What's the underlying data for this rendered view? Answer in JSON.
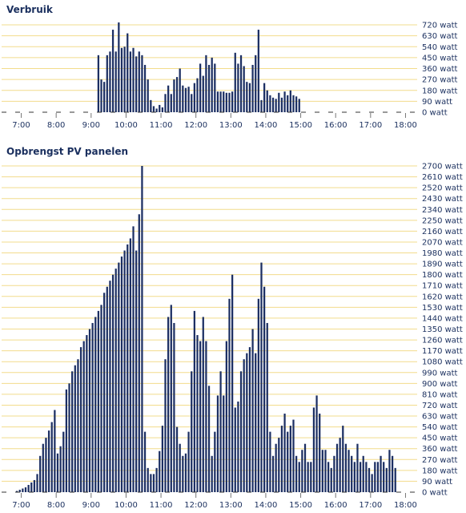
{
  "colors": {
    "bar": "#1c2f63",
    "grid": "#f2dc8c",
    "axis": "#777777",
    "text": "#1a2f5e"
  },
  "chart_data": [
    {
      "type": "bar",
      "title": "Verbruik",
      "xlabel": "",
      "ylabel": "",
      "y_unit": "watt",
      "ylim": [
        0,
        720
      ],
      "y_ticks": [
        "720 watt",
        "630 watt",
        "540 watt",
        "450 watt",
        "360 watt",
        "270 watt",
        "180 watt",
        "90 watt",
        "0 watt"
      ],
      "x_ticks": [
        "7:00",
        "8:00",
        "9:00",
        "10:00",
        "11:00",
        "12:00",
        "13:00",
        "14:00",
        "15:00",
        "16:00",
        "17:00",
        "18:00"
      ],
      "x_range": [
        "6:40",
        "18:20"
      ],
      "interval_minutes": 5,
      "grid": true,
      "values": [
        0,
        0,
        0,
        0,
        0,
        0,
        0,
        0,
        0,
        0,
        0,
        0,
        0,
        0,
        0,
        0,
        0,
        0,
        0,
        0,
        0,
        0,
        0,
        0,
        0,
        0,
        0,
        0,
        0,
        0,
        470,
        270,
        250,
        470,
        500,
        680,
        500,
        740,
        530,
        540,
        650,
        500,
        530,
        460,
        500,
        470,
        390,
        270,
        100,
        50,
        30,
        60,
        40,
        150,
        220,
        150,
        270,
        290,
        360,
        220,
        200,
        210,
        150,
        240,
        280,
        400,
        300,
        470,
        390,
        450,
        400,
        170,
        170,
        170,
        160,
        160,
        170,
        490,
        400,
        470,
        380,
        250,
        240,
        390,
        470,
        680,
        100,
        240,
        180,
        140,
        120,
        110,
        160,
        120,
        170,
        140,
        180,
        140,
        130,
        110,
        0,
        0,
        0,
        0,
        0,
        0,
        0,
        0,
        0,
        0,
        0,
        0,
        0,
        0,
        0,
        0,
        0,
        0,
        0,
        0,
        0,
        0,
        0,
        0,
        0,
        0,
        0,
        0,
        0,
        0
      ]
    },
    {
      "type": "bar",
      "title": "Opbrengst PV panelen",
      "xlabel": "",
      "ylabel": "",
      "y_unit": "watt",
      "ylim": [
        0,
        2700
      ],
      "y_ticks": [
        "2700 watt",
        "2610 watt",
        "2520 watt",
        "2430 watt",
        "2340 watt",
        "2250 watt",
        "2160 watt",
        "2070 watt",
        "1980 watt",
        "1890 watt",
        "1800 watt",
        "1710 watt",
        "1620 watt",
        "1530 watt",
        "1440 watt",
        "1350 watt",
        "1260 watt",
        "1170 watt",
        "1080 watt",
        "990 watt",
        "900 watt",
        "810 watt",
        "720 watt",
        "630 watt",
        "540 watt",
        "450 watt",
        "360 watt",
        "270 watt",
        "180 watt",
        "90 watt",
        "0 watt"
      ],
      "x_ticks": [
        "7:00",
        "8:00",
        "9:00",
        "10:00",
        "11:00",
        "12:00",
        "13:00",
        "14:00",
        "15:00",
        "16:00",
        "17:00",
        "18:00"
      ],
      "x_range": [
        "6:40",
        "18:20"
      ],
      "interval_minutes": 5,
      "grid": true,
      "values": [
        0,
        0,
        10,
        20,
        30,
        40,
        60,
        80,
        100,
        150,
        300,
        400,
        450,
        510,
        580,
        680,
        320,
        380,
        500,
        850,
        900,
        1000,
        1050,
        1100,
        1200,
        1250,
        1300,
        1350,
        1400,
        1450,
        1500,
        1550,
        1650,
        1700,
        1750,
        1800,
        1850,
        1900,
        1950,
        2000,
        2050,
        2100,
        2200,
        2000,
        2300,
        2700,
        500,
        200,
        150,
        150,
        200,
        340,
        550,
        1100,
        1450,
        1550,
        1400,
        540,
        400,
        300,
        320,
        500,
        1000,
        1500,
        1300,
        1250,
        1450,
        1250,
        880,
        300,
        500,
        800,
        1000,
        800,
        1250,
        1600,
        1800,
        700,
        750,
        1000,
        1100,
        1150,
        1200,
        1350,
        1150,
        1600,
        1900,
        1700,
        1400,
        500,
        300,
        400,
        450,
        550,
        650,
        500,
        550,
        600,
        300,
        250,
        350,
        400,
        250,
        250,
        700,
        800,
        650,
        350,
        350,
        250,
        200,
        300,
        400,
        450,
        550,
        400,
        350,
        300,
        250,
        400,
        250,
        300,
        250,
        200,
        150,
        250,
        250,
        300,
        250,
        200,
        350,
        300,
        200
      ]
    }
  ]
}
